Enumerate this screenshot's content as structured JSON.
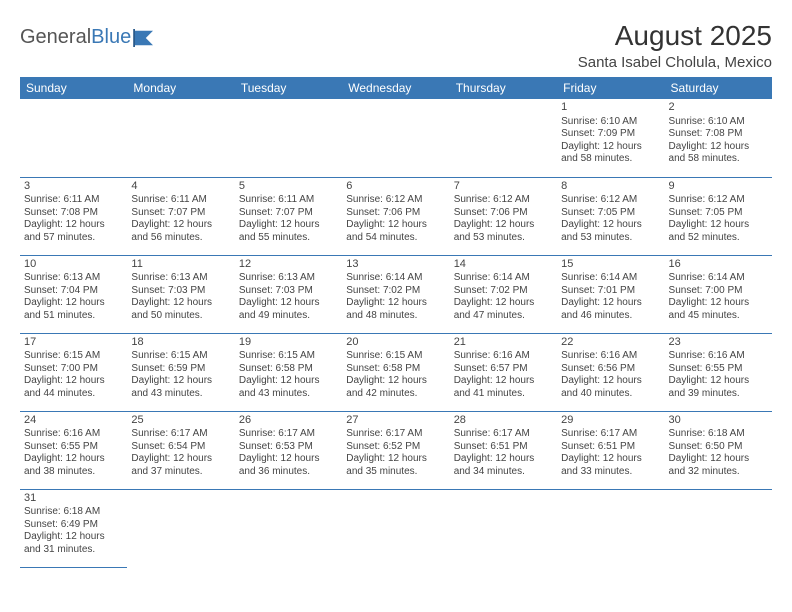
{
  "logo": {
    "word1": "General",
    "word2": "Blue"
  },
  "title": "August 2025",
  "location": "Santa Isabel Cholula, Mexico",
  "weekdays": [
    "Sunday",
    "Monday",
    "Tuesday",
    "Wednesday",
    "Thursday",
    "Friday",
    "Saturday"
  ],
  "colors": {
    "header_bg": "#3a78b5",
    "header_text": "#ffffff",
    "border": "#3a78b5"
  },
  "first_weekday": 5,
  "days": [
    {
      "n": "1",
      "sr": "6:10 AM",
      "ss": "7:09 PM",
      "dl": "12 hours and 58 minutes."
    },
    {
      "n": "2",
      "sr": "6:10 AM",
      "ss": "7:08 PM",
      "dl": "12 hours and 58 minutes."
    },
    {
      "n": "3",
      "sr": "6:11 AM",
      "ss": "7:08 PM",
      "dl": "12 hours and 57 minutes."
    },
    {
      "n": "4",
      "sr": "6:11 AM",
      "ss": "7:07 PM",
      "dl": "12 hours and 56 minutes."
    },
    {
      "n": "5",
      "sr": "6:11 AM",
      "ss": "7:07 PM",
      "dl": "12 hours and 55 minutes."
    },
    {
      "n": "6",
      "sr": "6:12 AM",
      "ss": "7:06 PM",
      "dl": "12 hours and 54 minutes."
    },
    {
      "n": "7",
      "sr": "6:12 AM",
      "ss": "7:06 PM",
      "dl": "12 hours and 53 minutes."
    },
    {
      "n": "8",
      "sr": "6:12 AM",
      "ss": "7:05 PM",
      "dl": "12 hours and 53 minutes."
    },
    {
      "n": "9",
      "sr": "6:12 AM",
      "ss": "7:05 PM",
      "dl": "12 hours and 52 minutes."
    },
    {
      "n": "10",
      "sr": "6:13 AM",
      "ss": "7:04 PM",
      "dl": "12 hours and 51 minutes."
    },
    {
      "n": "11",
      "sr": "6:13 AM",
      "ss": "7:03 PM",
      "dl": "12 hours and 50 minutes."
    },
    {
      "n": "12",
      "sr": "6:13 AM",
      "ss": "7:03 PM",
      "dl": "12 hours and 49 minutes."
    },
    {
      "n": "13",
      "sr": "6:14 AM",
      "ss": "7:02 PM",
      "dl": "12 hours and 48 minutes."
    },
    {
      "n": "14",
      "sr": "6:14 AM",
      "ss": "7:02 PM",
      "dl": "12 hours and 47 minutes."
    },
    {
      "n": "15",
      "sr": "6:14 AM",
      "ss": "7:01 PM",
      "dl": "12 hours and 46 minutes."
    },
    {
      "n": "16",
      "sr": "6:14 AM",
      "ss": "7:00 PM",
      "dl": "12 hours and 45 minutes."
    },
    {
      "n": "17",
      "sr": "6:15 AM",
      "ss": "7:00 PM",
      "dl": "12 hours and 44 minutes."
    },
    {
      "n": "18",
      "sr": "6:15 AM",
      "ss": "6:59 PM",
      "dl": "12 hours and 43 minutes."
    },
    {
      "n": "19",
      "sr": "6:15 AM",
      "ss": "6:58 PM",
      "dl": "12 hours and 43 minutes."
    },
    {
      "n": "20",
      "sr": "6:15 AM",
      "ss": "6:58 PM",
      "dl": "12 hours and 42 minutes."
    },
    {
      "n": "21",
      "sr": "6:16 AM",
      "ss": "6:57 PM",
      "dl": "12 hours and 41 minutes."
    },
    {
      "n": "22",
      "sr": "6:16 AM",
      "ss": "6:56 PM",
      "dl": "12 hours and 40 minutes."
    },
    {
      "n": "23",
      "sr": "6:16 AM",
      "ss": "6:55 PM",
      "dl": "12 hours and 39 minutes."
    },
    {
      "n": "24",
      "sr": "6:16 AM",
      "ss": "6:55 PM",
      "dl": "12 hours and 38 minutes."
    },
    {
      "n": "25",
      "sr": "6:17 AM",
      "ss": "6:54 PM",
      "dl": "12 hours and 37 minutes."
    },
    {
      "n": "26",
      "sr": "6:17 AM",
      "ss": "6:53 PM",
      "dl": "12 hours and 36 minutes."
    },
    {
      "n": "27",
      "sr": "6:17 AM",
      "ss": "6:52 PM",
      "dl": "12 hours and 35 minutes."
    },
    {
      "n": "28",
      "sr": "6:17 AM",
      "ss": "6:51 PM",
      "dl": "12 hours and 34 minutes."
    },
    {
      "n": "29",
      "sr": "6:17 AM",
      "ss": "6:51 PM",
      "dl": "12 hours and 33 minutes."
    },
    {
      "n": "30",
      "sr": "6:18 AM",
      "ss": "6:50 PM",
      "dl": "12 hours and 32 minutes."
    },
    {
      "n": "31",
      "sr": "6:18 AM",
      "ss": "6:49 PM",
      "dl": "12 hours and 31 minutes."
    }
  ]
}
